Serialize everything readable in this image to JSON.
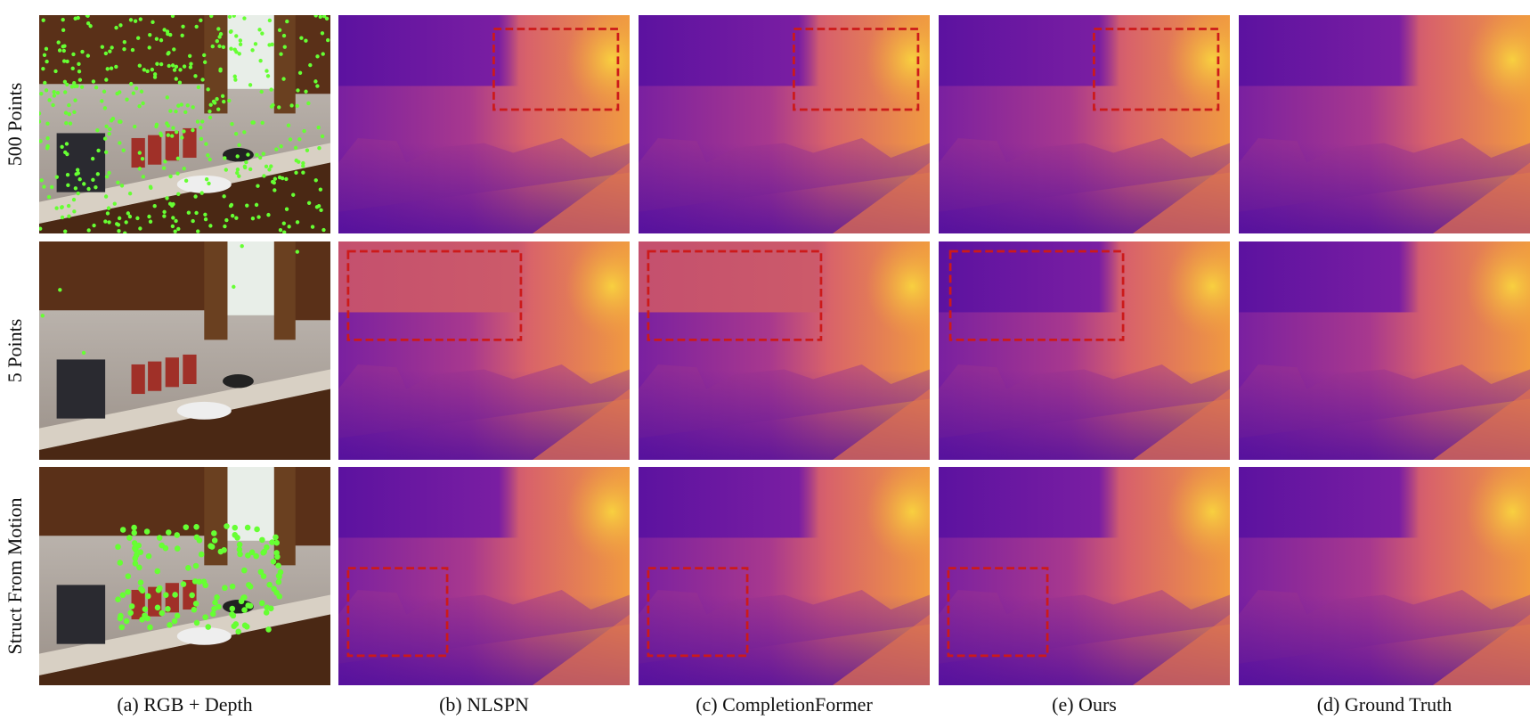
{
  "figure": {
    "row_labels": [
      "500 Points",
      "5 Points",
      "Struct From Motion"
    ],
    "captions": [
      "(a) RGB + Depth",
      "(b) NLSPN",
      "(c) CompletionFormer",
      "(e) Ours",
      "(d) Ground Truth"
    ]
  }
}
